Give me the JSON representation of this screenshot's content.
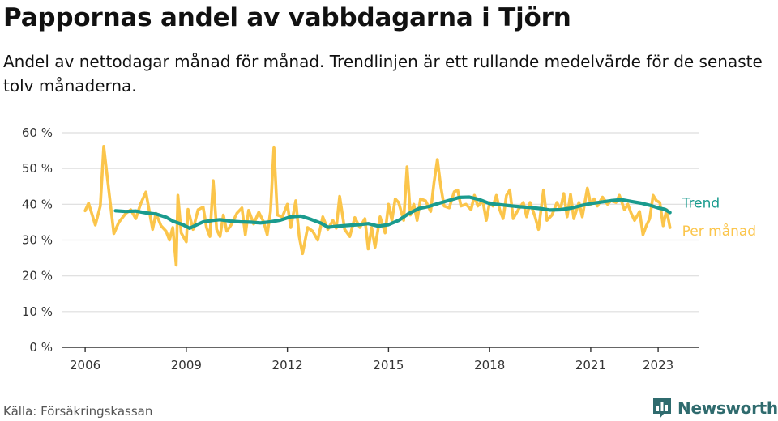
{
  "header": {
    "title": "Pappornas andel av vabbdagarna i Tjörn",
    "subtitle": "Andel av nettodagar månad för månad. Trendlinjen är ett rullande medelvärde för de senaste tolv månaderna."
  },
  "footer": {
    "source": "Källa: Försäkringskassan",
    "brand": "Newsworthy",
    "brand_icon": "newsworthy-chart-icon"
  },
  "colors": {
    "trend": "#1a9b8e",
    "monthly": "#fbc54b",
    "brand": "#2f6b6e",
    "axis": "#333333",
    "grid": "#dddddd"
  },
  "chart_data": {
    "type": "line",
    "title": "Pappornas andel av vabbdagarna i Tjörn",
    "xlabel": "",
    "ylabel": "",
    "x_ticks": [
      2006,
      2009,
      2012,
      2015,
      2018,
      2021,
      2023
    ],
    "y_ticks": [
      0,
      10,
      20,
      30,
      40,
      50,
      60
    ],
    "y_tick_labels": [
      "0 %",
      "10 %",
      "20 %",
      "30 %",
      "40 %",
      "50 %",
      "60 %"
    ],
    "xlim": [
      2005.3,
      2024.2
    ],
    "ylim": [
      0,
      60
    ],
    "grid": true,
    "legend": "inline-right",
    "series": [
      {
        "name": "Trend",
        "values": [
          [
            2006.9,
            38.2
          ],
          [
            2007.2,
            38.0
          ],
          [
            2007.5,
            38.1
          ],
          [
            2007.8,
            37.6
          ],
          [
            2008.1,
            37.3
          ],
          [
            2008.4,
            36.4
          ],
          [
            2008.6,
            35.3
          ],
          [
            2008.9,
            34.3
          ],
          [
            2009.1,
            33.3
          ],
          [
            2009.3,
            34.2
          ],
          [
            2009.5,
            35.1
          ],
          [
            2009.8,
            35.5
          ],
          [
            2010.0,
            35.7
          ],
          [
            2010.3,
            35.3
          ],
          [
            2010.6,
            35.1
          ],
          [
            2010.9,
            35.0
          ],
          [
            2011.2,
            34.8
          ],
          [
            2011.5,
            35.1
          ],
          [
            2011.8,
            35.6
          ],
          [
            2012.1,
            36.5
          ],
          [
            2012.4,
            36.7
          ],
          [
            2012.7,
            35.8
          ],
          [
            2013.0,
            34.7
          ],
          [
            2013.2,
            33.6
          ],
          [
            2013.5,
            33.9
          ],
          [
            2013.8,
            34.1
          ],
          [
            2014.1,
            34.3
          ],
          [
            2014.4,
            34.6
          ],
          [
            2014.7,
            33.9
          ],
          [
            2015.0,
            34.3
          ],
          [
            2015.3,
            35.5
          ],
          [
            2015.6,
            37.4
          ],
          [
            2015.9,
            38.8
          ],
          [
            2016.2,
            39.4
          ],
          [
            2016.5,
            40.3
          ],
          [
            2016.8,
            41.1
          ],
          [
            2017.1,
            41.9
          ],
          [
            2017.4,
            42.0
          ],
          [
            2017.7,
            41.3
          ],
          [
            2018.0,
            40.2
          ],
          [
            2018.3,
            39.9
          ],
          [
            2018.6,
            39.6
          ],
          [
            2018.9,
            39.3
          ],
          [
            2019.2,
            39.1
          ],
          [
            2019.5,
            38.8
          ],
          [
            2019.8,
            38.4
          ],
          [
            2020.1,
            38.5
          ],
          [
            2020.4,
            38.9
          ],
          [
            2020.7,
            39.6
          ],
          [
            2021.0,
            40.2
          ],
          [
            2021.3,
            40.6
          ],
          [
            2021.6,
            41.0
          ],
          [
            2021.9,
            41.3
          ],
          [
            2022.2,
            40.8
          ],
          [
            2022.5,
            40.3
          ],
          [
            2022.8,
            39.6
          ],
          [
            2023.0,
            39.0
          ],
          [
            2023.2,
            38.6
          ],
          [
            2023.35,
            37.7
          ]
        ]
      },
      {
        "name": "Per månad",
        "values": [
          [
            2006.0,
            38.2
          ],
          [
            2006.1,
            40.3
          ],
          [
            2006.3,
            34.2
          ],
          [
            2006.45,
            39.5
          ],
          [
            2006.55,
            56.2
          ],
          [
            2006.7,
            44.0
          ],
          [
            2006.85,
            31.8
          ],
          [
            2007.0,
            35.0
          ],
          [
            2007.2,
            37.4
          ],
          [
            2007.35,
            38.5
          ],
          [
            2007.5,
            36.0
          ],
          [
            2007.65,
            40.2
          ],
          [
            2007.8,
            43.4
          ],
          [
            2008.0,
            33.0
          ],
          [
            2008.1,
            37.5
          ],
          [
            2008.25,
            34.0
          ],
          [
            2008.4,
            32.5
          ],
          [
            2008.5,
            30.0
          ],
          [
            2008.6,
            33.5
          ],
          [
            2008.7,
            23.0
          ],
          [
            2008.75,
            42.5
          ],
          [
            2008.85,
            32.0
          ],
          [
            2009.0,
            29.5
          ],
          [
            2009.05,
            38.6
          ],
          [
            2009.2,
            33.0
          ],
          [
            2009.35,
            38.5
          ],
          [
            2009.5,
            39.2
          ],
          [
            2009.6,
            33.5
          ],
          [
            2009.7,
            31.0
          ],
          [
            2009.8,
            46.6
          ],
          [
            2009.9,
            33.0
          ],
          [
            2010.0,
            31.0
          ],
          [
            2010.1,
            37.0
          ],
          [
            2010.2,
            32.5
          ],
          [
            2010.35,
            34.5
          ],
          [
            2010.5,
            37.5
          ],
          [
            2010.65,
            39.0
          ],
          [
            2010.75,
            31.5
          ],
          [
            2010.85,
            38.3
          ],
          [
            2011.0,
            34.5
          ],
          [
            2011.15,
            37.8
          ],
          [
            2011.3,
            35.0
          ],
          [
            2011.4,
            31.5
          ],
          [
            2011.5,
            38.0
          ],
          [
            2011.6,
            56.0
          ],
          [
            2011.7,
            37.0
          ],
          [
            2011.85,
            36.5
          ],
          [
            2012.0,
            40.0
          ],
          [
            2012.1,
            33.5
          ],
          [
            2012.25,
            41.0
          ],
          [
            2012.35,
            31.0
          ],
          [
            2012.45,
            26.2
          ],
          [
            2012.6,
            33.5
          ],
          [
            2012.75,
            32.5
          ],
          [
            2012.9,
            30.0
          ],
          [
            2013.05,
            36.5
          ],
          [
            2013.2,
            33.0
          ],
          [
            2013.35,
            35.5
          ],
          [
            2013.45,
            33.3
          ],
          [
            2013.55,
            42.2
          ],
          [
            2013.7,
            33.0
          ],
          [
            2013.85,
            31.0
          ],
          [
            2014.0,
            36.3
          ],
          [
            2014.15,
            33.5
          ],
          [
            2014.3,
            36.0
          ],
          [
            2014.4,
            27.5
          ],
          [
            2014.5,
            33.5
          ],
          [
            2014.6,
            28.0
          ],
          [
            2014.75,
            36.5
          ],
          [
            2014.9,
            32.0
          ],
          [
            2015.0,
            40.0
          ],
          [
            2015.1,
            35.5
          ],
          [
            2015.2,
            41.5
          ],
          [
            2015.3,
            40.5
          ],
          [
            2015.45,
            35.5
          ],
          [
            2015.55,
            50.5
          ],
          [
            2015.65,
            37.0
          ],
          [
            2015.75,
            40.0
          ],
          [
            2015.85,
            35.5
          ],
          [
            2015.95,
            41.5
          ],
          [
            2016.1,
            41.0
          ],
          [
            2016.25,
            38.0
          ],
          [
            2016.35,
            46.0
          ],
          [
            2016.45,
            52.5
          ],
          [
            2016.55,
            45.0
          ],
          [
            2016.65,
            39.5
          ],
          [
            2016.8,
            39.0
          ],
          [
            2016.95,
            43.5
          ],
          [
            2017.05,
            44.0
          ],
          [
            2017.15,
            39.5
          ],
          [
            2017.3,
            40.0
          ],
          [
            2017.45,
            38.5
          ],
          [
            2017.55,
            42.5
          ],
          [
            2017.65,
            39.5
          ],
          [
            2017.8,
            41.0
          ],
          [
            2017.9,
            35.5
          ],
          [
            2018.0,
            40.5
          ],
          [
            2018.1,
            39.5
          ],
          [
            2018.2,
            42.5
          ],
          [
            2018.3,
            38.5
          ],
          [
            2018.4,
            36.0
          ],
          [
            2018.5,
            42.5
          ],
          [
            2018.6,
            44.0
          ],
          [
            2018.7,
            36.0
          ],
          [
            2018.85,
            38.5
          ],
          [
            2019.0,
            40.5
          ],
          [
            2019.1,
            36.5
          ],
          [
            2019.2,
            40.5
          ],
          [
            2019.35,
            36.5
          ],
          [
            2019.45,
            33.0
          ],
          [
            2019.6,
            44.0
          ],
          [
            2019.7,
            35.5
          ],
          [
            2019.85,
            37.0
          ],
          [
            2020.0,
            40.5
          ],
          [
            2020.1,
            38.5
          ],
          [
            2020.2,
            43.0
          ],
          [
            2020.3,
            36.5
          ],
          [
            2020.4,
            42.8
          ],
          [
            2020.5,
            36.0
          ],
          [
            2020.65,
            40.5
          ],
          [
            2020.75,
            36.5
          ],
          [
            2020.9,
            44.5
          ],
          [
            2021.0,
            40.0
          ],
          [
            2021.1,
            41.5
          ],
          [
            2021.2,
            39.5
          ],
          [
            2021.35,
            42.0
          ],
          [
            2021.5,
            40.0
          ],
          [
            2021.6,
            41.0
          ],
          [
            2021.75,
            40.5
          ],
          [
            2021.85,
            42.5
          ],
          [
            2022.0,
            38.5
          ],
          [
            2022.1,
            40.0
          ],
          [
            2022.2,
            37.5
          ],
          [
            2022.3,
            35.5
          ],
          [
            2022.45,
            38.0
          ],
          [
            2022.55,
            31.5
          ],
          [
            2022.65,
            34.0
          ],
          [
            2022.75,
            36.0
          ],
          [
            2022.85,
            42.5
          ],
          [
            2022.95,
            41.0
          ],
          [
            2023.05,
            40.5
          ],
          [
            2023.15,
            34.0
          ],
          [
            2023.25,
            38.5
          ],
          [
            2023.35,
            33.5
          ]
        ]
      }
    ]
  }
}
